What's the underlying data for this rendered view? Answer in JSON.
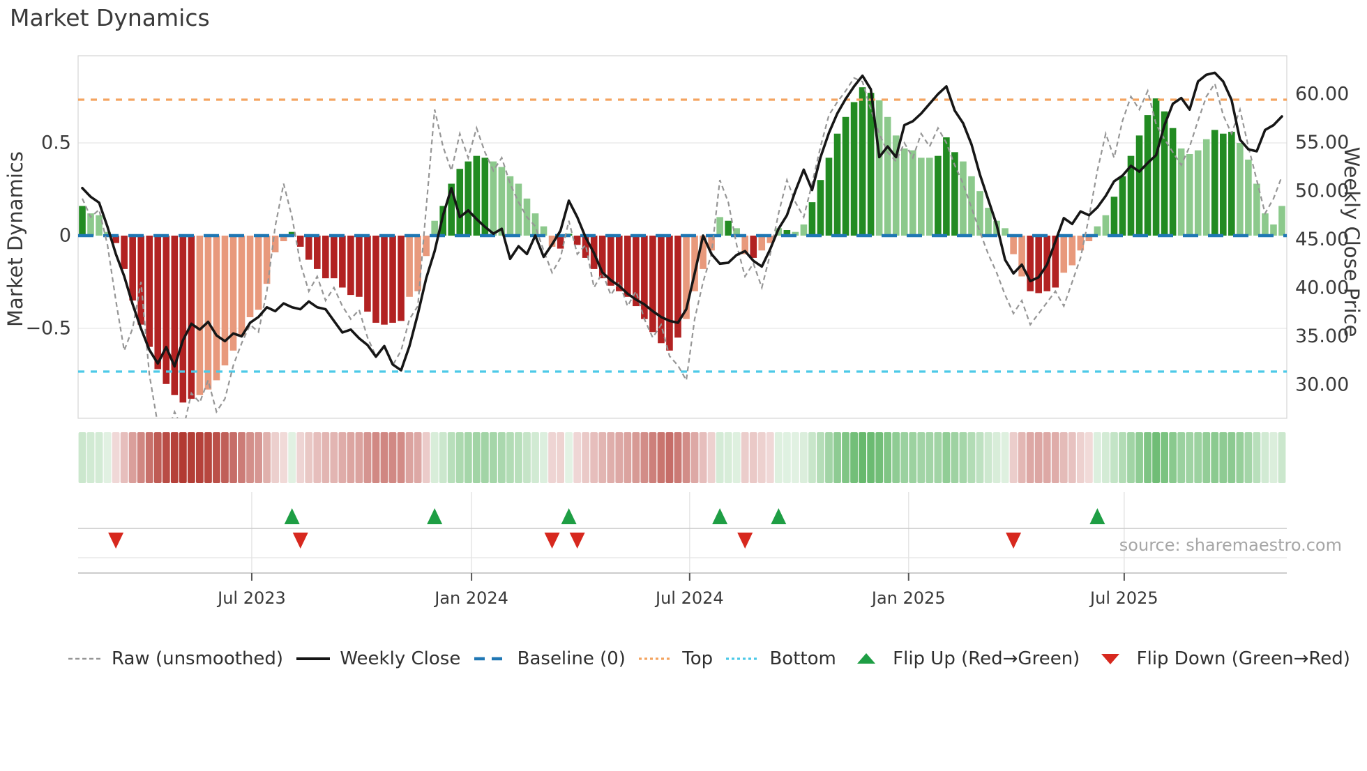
{
  "title": "Market Dynamics",
  "source": "source: sharemaestro.com",
  "axes": {
    "left_label": "Market Dynamics",
    "right_label": "Weekly Close Price"
  },
  "colors": {
    "bar_green_dark": "#228B22",
    "bar_green_light": "#8CC98C",
    "bar_red_dark": "#B22222",
    "bar_red_light": "#E8997C",
    "baseline": "#1F77B4",
    "top_line": "#F4A460",
    "bottom_line": "#4DC9E8",
    "raw_line": "#969696",
    "close_line": "#161616",
    "flip_up": "#1E9E44",
    "flip_down": "#D7281E",
    "heat_green": "#57B25E",
    "heat_red": "#B23A32",
    "grid": "#ebebeb",
    "spine": "#d4d4d4",
    "tick_text": "#3a3a3a"
  },
  "legend": [
    {
      "label": "Raw (unsmoothed)",
      "swatch": "dash-gray"
    },
    {
      "label": "Weekly Close",
      "swatch": "solid-black"
    },
    {
      "label": "Baseline (0)",
      "swatch": "dash-blue"
    },
    {
      "label": "Top",
      "swatch": "dot-orange"
    },
    {
      "label": "Bottom",
      "swatch": "dot-cyan"
    },
    {
      "label": "Flip Up (Red→Green)",
      "swatch": "tri-up"
    },
    {
      "label": "Flip Down (Green→Red)",
      "swatch": "tri-down"
    }
  ],
  "chart_data": {
    "type": "combo",
    "weeks": 144,
    "x_ticks": [
      {
        "label": "Jul 2023",
        "week": 20.2
      },
      {
        "label": "Jan 2024",
        "week": 46.4
      },
      {
        "label": "Jul 2024",
        "week": 72.4
      },
      {
        "label": "Jan 2025",
        "week": 98.5
      },
      {
        "label": "Jul 2025",
        "week": 124.2
      }
    ],
    "left_axis": {
      "ticks": [
        {
          "label": "0.5",
          "value": 0.5
        },
        {
          "label": "0",
          "value": 0
        },
        {
          "label": "−0.5",
          "value": -0.5
        }
      ],
      "range": [
        -0.985,
        0.97
      ]
    },
    "right_axis": {
      "ticks": [
        {
          "label": "60.00",
          "value": 60
        },
        {
          "label": "55.00",
          "value": 55
        },
        {
          "label": "50.00",
          "value": 50
        },
        {
          "label": "45.00",
          "value": 45
        },
        {
          "label": "40.00",
          "value": 40
        },
        {
          "label": "35.00",
          "value": 35
        },
        {
          "label": "30.00",
          "value": 30
        }
      ],
      "range": [
        26.5,
        63.9
      ]
    },
    "reference_lines": {
      "baseline": 0,
      "top": 0.733,
      "bottom": -0.733
    },
    "oscillator": {
      "name": "Market Dynamics (smoothed bars)",
      "values": [
        0.16,
        0.12,
        0.11,
        0.02,
        -0.04,
        -0.18,
        -0.35,
        -0.48,
        -0.6,
        -0.72,
        -0.8,
        -0.86,
        -0.9,
        -0.88,
        -0.86,
        -0.83,
        -0.78,
        -0.7,
        -0.62,
        -0.54,
        -0.44,
        -0.4,
        -0.26,
        -0.09,
        -0.03,
        0.02,
        -0.06,
        -0.13,
        -0.18,
        -0.23,
        -0.23,
        -0.28,
        -0.32,
        -0.33,
        -0.41,
        -0.47,
        -0.48,
        -0.47,
        -0.46,
        -0.33,
        -0.3,
        -0.11,
        0.08,
        0.16,
        0.28,
        0.36,
        0.4,
        0.43,
        0.42,
        0.4,
        0.37,
        0.32,
        0.28,
        0.2,
        0.12,
        0.05,
        -0.06,
        -0.07,
        0.01,
        -0.05,
        -0.12,
        -0.18,
        -0.23,
        -0.27,
        -0.3,
        -0.33,
        -0.38,
        -0.45,
        -0.52,
        -0.58,
        -0.62,
        -0.55,
        -0.45,
        -0.3,
        -0.18,
        -0.08,
        0.1,
        0.08,
        0.04,
        -0.1,
        -0.12,
        -0.08,
        -0.04,
        0.04,
        0.03,
        0.02,
        0.06,
        0.18,
        0.3,
        0.42,
        0.55,
        0.64,
        0.72,
        0.8,
        0.77,
        0.73,
        0.64,
        0.54,
        0.47,
        0.46,
        0.42,
        0.42,
        0.43,
        0.53,
        0.45,
        0.4,
        0.32,
        0.24,
        0.15,
        0.08,
        0.04,
        -0.1,
        -0.22,
        -0.3,
        -0.31,
        -0.3,
        -0.28,
        -0.2,
        -0.16,
        -0.08,
        -0.03,
        0.05,
        0.11,
        0.21,
        0.32,
        0.43,
        0.54,
        0.65,
        0.74,
        0.67,
        0.58,
        0.47,
        0.44,
        0.46,
        0.52,
        0.57,
        0.55,
        0.56,
        0.5,
        0.41,
        0.28,
        0.12,
        0.06,
        0.16
      ],
      "shades": "dlllddddddddddlllllllllllddddddddddddddllllddddddlllllllldddddddddddddddllllldlldllldllddddddddllllllldddllllllllddddllllllddddddddlllldddllllllld"
    },
    "raw": {
      "name": "Raw (unsmoothed)",
      "values": [
        0.2,
        0.1,
        0.14,
        -0.05,
        -0.35,
        -0.62,
        -0.5,
        -0.25,
        -0.75,
        -1.02,
        -1.08,
        -0.95,
        -1.05,
        -0.85,
        -0.9,
        -0.78,
        -0.95,
        -0.88,
        -0.7,
        -0.58,
        -0.48,
        -0.52,
        -0.3,
        0.05,
        0.28,
        0.1,
        -0.15,
        -0.3,
        -0.22,
        -0.35,
        -0.28,
        -0.38,
        -0.45,
        -0.4,
        -0.55,
        -0.65,
        -0.6,
        -0.7,
        -0.62,
        -0.45,
        -0.38,
        0.15,
        0.68,
        0.48,
        0.35,
        0.55,
        0.42,
        0.58,
        0.45,
        0.35,
        0.42,
        0.28,
        0.18,
        0.1,
        0.05,
        -0.08,
        -0.2,
        -0.12,
        0.08,
        -0.1,
        -0.05,
        -0.28,
        -0.2,
        -0.32,
        -0.25,
        -0.38,
        -0.3,
        -0.45,
        -0.55,
        -0.48,
        -0.65,
        -0.7,
        -0.78,
        -0.45,
        -0.25,
        -0.1,
        0.3,
        0.18,
        -0.05,
        -0.22,
        -0.15,
        -0.28,
        -0.1,
        0.12,
        0.3,
        0.18,
        0.1,
        0.28,
        0.48,
        0.65,
        0.72,
        0.78,
        0.85,
        0.83,
        0.68,
        0.55,
        0.45,
        0.4,
        0.5,
        0.42,
        0.55,
        0.48,
        0.58,
        0.5,
        0.38,
        0.28,
        0.15,
        0.02,
        -0.1,
        -0.2,
        -0.32,
        -0.42,
        -0.35,
        -0.48,
        -0.42,
        -0.36,
        -0.3,
        -0.38,
        -0.25,
        -0.12,
        0.1,
        0.35,
        0.55,
        0.42,
        0.62,
        0.75,
        0.68,
        0.78,
        0.6,
        0.52,
        0.45,
        0.38,
        0.48,
        0.62,
        0.75,
        0.82,
        0.65,
        0.55,
        0.68,
        0.48,
        0.3,
        0.12,
        0.2,
        0.32
      ]
    },
    "weekly_close": {
      "name": "Weekly Close",
      "axis": "right",
      "values": [
        50.3,
        49.4,
        48.8,
        46.3,
        43.5,
        41.2,
        38.3,
        35.8,
        33.6,
        32.2,
        33.9,
        31.9,
        34.6,
        36.3,
        35.7,
        36.5,
        35.1,
        34.5,
        35.3,
        35.0,
        36.4,
        37.0,
        38.0,
        37.6,
        38.4,
        38.0,
        37.8,
        38.6,
        38.0,
        37.8,
        36.6,
        35.4,
        35.7,
        34.8,
        34.1,
        32.9,
        34.0,
        32.1,
        31.5,
        34.0,
        37.3,
        41.0,
        43.8,
        47.5,
        50.3,
        47.3,
        48.0,
        47.1,
        46.3,
        45.6,
        46.1,
        43.0,
        44.3,
        43.5,
        45.4,
        43.2,
        44.5,
        45.9,
        49.0,
        47.3,
        45.2,
        43.6,
        41.6,
        40.8,
        40.2,
        39.4,
        38.8,
        38.3,
        37.6,
        37.0,
        36.6,
        36.4,
        37.8,
        41.5,
        45.4,
        43.5,
        42.5,
        42.6,
        43.4,
        43.8,
        42.8,
        42.2,
        44.0,
        46.1,
        47.5,
        50.0,
        52.2,
        50.1,
        53.5,
        56.0,
        58.0,
        59.5,
        60.8,
        61.9,
        60.5,
        53.5,
        54.6,
        53.5,
        56.8,
        57.2,
        58.0,
        59.0,
        60.0,
        60.8,
        58.3,
        57.0,
        54.8,
        51.7,
        49.1,
        46.5,
        42.9,
        41.5,
        42.4,
        40.7,
        41.1,
        42.4,
        44.8,
        47.2,
        46.6,
        47.9,
        47.5,
        48.3,
        49.5,
        51.0,
        51.6,
        52.6,
        52.0,
        52.9,
        53.7,
        56.8,
        59.0,
        59.6,
        58.4,
        61.3,
        62.0,
        62.2,
        61.3,
        59.4,
        55.3,
        54.3,
        54.1,
        56.3,
        56.8,
        57.7
      ]
    },
    "heatmap": {
      "note": "strip mirrors oscillator values",
      "source": "oscillator"
    },
    "flip_up_weeks": [
      25,
      42,
      58,
      76,
      83,
      121
    ],
    "flip_down_weeks": [
      4,
      26,
      56,
      59,
      79,
      111
    ]
  }
}
